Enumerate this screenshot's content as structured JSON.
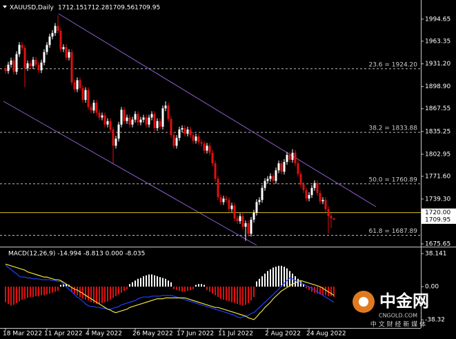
{
  "chart_data": {
    "type": "candlestick",
    "symbol": "XAUUSD,Daily",
    "header_values": [
      1712.15,
      1712.28,
      1709.56,
      1709.95
    ],
    "up_color": "#ffffff",
    "down_color": "#e01010",
    "ylim": [
      1671.7,
      2017.9
    ],
    "yticks": [
      1994.65,
      1963.35,
      {
        "value": 1931.2,
        "label": "1931.20"
      },
      {
        "value": 1898.9,
        "label": "1898.90"
      },
      1867.55,
      1835.25,
      1802.95,
      {
        "value": 1771.6,
        "label": "1771.60"
      },
      {
        "value": 1739.3,
        "label": "1739.30"
      },
      1675.65
    ],
    "xticks": [
      {
        "value": 0,
        "label": "18 Mar 2022"
      },
      {
        "value": 15,
        "label": "11 Apr 2022"
      },
      {
        "value": 30,
        "label": "4 May 2022"
      },
      {
        "value": 47,
        "label": "26 May 2022"
      },
      {
        "value": 63,
        "label": "17 Jun 2022"
      },
      {
        "value": 78,
        "label": "11 Jul 2022"
      },
      {
        "value": 95,
        "label": "2 Aug 2022"
      },
      {
        "value": 110,
        "label": "24 Aug 2022"
      }
    ],
    "levels": [
      {
        "label": "23.6 = 1924.20",
        "value": 1924.2
      },
      {
        "label": "38.2 = 1833.88",
        "value": 1833.88
      },
      {
        "label": "50.0 = 1760.89",
        "value": 1760.89
      },
      {
        "label": "61.8 = 1687.89",
        "value": 1687.89
      }
    ],
    "price_line": {
      "value": 1720,
      "label": "1720.00",
      "color": "#e0c020"
    },
    "last_price": 1709.95,
    "candles": [
      [
        1925,
        1929,
        1917,
        1921
      ],
      [
        1921,
        1934,
        1917,
        1930
      ],
      [
        1930,
        1940,
        1926,
        1936
      ],
      [
        1936,
        1940,
        1916,
        1920
      ],
      [
        1920,
        1949,
        1916,
        1945
      ],
      [
        1945,
        1962,
        1941,
        1958
      ],
      [
        1958,
        1962,
        1950,
        1954
      ],
      [
        1954,
        1958,
        1898,
        1925
      ],
      [
        1925,
        1936,
        1921,
        1932
      ],
      [
        1932,
        1936,
        1924,
        1928
      ],
      [
        1928,
        1941,
        1924,
        1937
      ],
      [
        1937,
        1941,
        1926,
        1930
      ],
      [
        1930,
        1934,
        1918,
        1922
      ],
      [
        1922,
        1937,
        1918,
        1933
      ],
      [
        1933,
        1952,
        1929,
        1948
      ],
      [
        1948,
        1962,
        1944,
        1958
      ],
      [
        1958,
        1974,
        1954,
        1970
      ],
      [
        1970,
        1979,
        1966,
        1975
      ],
      [
        1975,
        1989,
        1971,
        1985
      ],
      [
        1985,
        2000,
        1974,
        1978
      ],
      [
        1978,
        1982,
        1948,
        1952
      ],
      [
        1952,
        1959,
        1948,
        1955
      ],
      [
        1955,
        1959,
        1936,
        1940
      ],
      [
        1940,
        1952,
        1936,
        1948
      ],
      [
        1948,
        1952,
        1901,
        1905
      ],
      [
        1905,
        1909,
        1891,
        1895
      ],
      [
        1895,
        1912,
        1891,
        1908
      ],
      [
        1908,
        1912,
        1893,
        1897
      ],
      [
        1897,
        1901,
        1876,
        1880
      ],
      [
        1880,
        1898,
        1876,
        1894
      ],
      [
        1894,
        1898,
        1866,
        1870
      ],
      [
        1870,
        1874,
        1861,
        1865
      ],
      [
        1865,
        1880,
        1861,
        1876
      ],
      [
        1876,
        1880,
        1858,
        1862
      ],
      [
        1862,
        1866,
        1851,
        1855
      ],
      [
        1855,
        1862,
        1851,
        1858
      ],
      [
        1858,
        1862,
        1841,
        1845
      ],
      [
        1845,
        1854,
        1841,
        1850
      ],
      [
        1850,
        1854,
        1834,
        1838
      ],
      [
        1838,
        1842,
        1790,
        1815
      ],
      [
        1815,
        1829,
        1811,
        1825
      ],
      [
        1825,
        1849,
        1821,
        1845
      ],
      [
        1845,
        1870,
        1841,
        1866
      ],
      [
        1866,
        1870,
        1846,
        1850
      ],
      [
        1850,
        1859,
        1846,
        1855
      ],
      [
        1855,
        1859,
        1841,
        1845
      ],
      [
        1845,
        1856,
        1841,
        1852
      ],
      [
        1852,
        1864,
        1848,
        1860
      ],
      [
        1860,
        1864,
        1844,
        1848
      ],
      [
        1848,
        1856,
        1844,
        1852
      ],
      [
        1852,
        1859,
        1848,
        1855
      ],
      [
        1855,
        1859,
        1841,
        1845
      ],
      [
        1845,
        1859,
        1841,
        1855
      ],
      [
        1855,
        1864,
        1851,
        1860
      ],
      [
        1860,
        1864,
        1836,
        1840
      ],
      [
        1840,
        1854,
        1836,
        1850
      ],
      [
        1850,
        1854,
        1838,
        1842
      ],
      [
        1842,
        1872,
        1838,
        1868
      ],
      [
        1868,
        1878,
        1864,
        1872
      ],
      [
        1872,
        1876,
        1849,
        1853
      ],
      [
        1853,
        1857,
        1826,
        1830
      ],
      [
        1830,
        1834,
        1811,
        1815
      ],
      [
        1815,
        1830,
        1811,
        1826
      ],
      [
        1826,
        1842,
        1822,
        1838
      ],
      [
        1838,
        1844,
        1834,
        1840
      ],
      [
        1840,
        1844,
        1828,
        1832
      ],
      [
        1832,
        1842,
        1828,
        1838
      ],
      [
        1838,
        1842,
        1826,
        1830
      ],
      [
        1830,
        1834,
        1818,
        1822
      ],
      [
        1822,
        1832,
        1818,
        1828
      ],
      [
        1828,
        1832,
        1816,
        1820
      ],
      [
        1820,
        1824,
        1814,
        1818
      ],
      [
        1818,
        1822,
        1804,
        1808
      ],
      [
        1808,
        1819,
        1804,
        1815
      ],
      [
        1815,
        1819,
        1801,
        1805
      ],
      [
        1805,
        1809,
        1786,
        1790
      ],
      [
        1790,
        1794,
        1764,
        1768
      ],
      [
        1768,
        1772,
        1738,
        1742
      ],
      [
        1742,
        1746,
        1731,
        1735
      ],
      [
        1735,
        1744,
        1731,
        1740
      ],
      [
        1740,
        1744,
        1734,
        1738
      ],
      [
        1738,
        1742,
        1721,
        1725
      ],
      [
        1725,
        1734,
        1721,
        1730
      ],
      [
        1730,
        1734,
        1708,
        1712
      ],
      [
        1712,
        1716,
        1704,
        1708
      ],
      [
        1708,
        1719,
        1704,
        1715
      ],
      [
        1715,
        1719,
        1696,
        1700
      ],
      [
        1700,
        1709,
        1680,
        1705
      ],
      [
        1705,
        1709,
        1686,
        1690
      ],
      [
        1690,
        1714,
        1686,
        1710
      ],
      [
        1710,
        1724,
        1706,
        1720
      ],
      [
        1720,
        1739,
        1716,
        1735
      ],
      [
        1735,
        1742,
        1731,
        1738
      ],
      [
        1738,
        1759,
        1734,
        1755
      ],
      [
        1755,
        1769,
        1751,
        1765
      ],
      [
        1765,
        1772,
        1761,
        1768
      ],
      [
        1768,
        1776,
        1764,
        1772
      ],
      [
        1772,
        1776,
        1761,
        1765
      ],
      [
        1765,
        1784,
        1761,
        1780
      ],
      [
        1780,
        1794,
        1776,
        1790
      ],
      [
        1790,
        1794,
        1774,
        1778
      ],
      [
        1778,
        1796,
        1774,
        1792
      ],
      [
        1792,
        1806,
        1788,
        1802
      ],
      [
        1802,
        1806,
        1791,
        1795
      ],
      [
        1795,
        1810,
        1791,
        1805
      ],
      [
        1805,
        1809,
        1786,
        1790
      ],
      [
        1790,
        1794,
        1771,
        1775
      ],
      [
        1775,
        1779,
        1756,
        1760
      ],
      [
        1760,
        1764,
        1748,
        1752
      ],
      [
        1752,
        1756,
        1736,
        1740
      ],
      [
        1740,
        1749,
        1736,
        1745
      ],
      [
        1745,
        1759,
        1741,
        1755
      ],
      [
        1755,
        1766,
        1751,
        1762
      ],
      [
        1762,
        1766,
        1744,
        1748
      ],
      [
        1748,
        1752,
        1732,
        1736
      ],
      [
        1736,
        1742,
        1732,
        1738
      ],
      [
        1738,
        1742,
        1721,
        1725
      ],
      [
        1725,
        1729,
        1690,
        1715
      ],
      [
        1715,
        1719,
        1698,
        1712
      ],
      [
        1712.15,
        1712.28,
        1709.56,
        1709.95
      ]
    ],
    "macd": {
      "label": "MACD(12,26,9) -14.994 -8.813 0.000 -8.035",
      "ylim": [
        -47.7,
        44.5
      ],
      "yticks": [
        38.141,
        {
          "value": 0,
          "label": "0.00"
        },
        -38.32
      ],
      "macd_color": "#2040ff",
      "signal_color": "#f0e040",
      "up_color": "#ffffff",
      "down_color": "#e01010",
      "histogram": [
        -18,
        -20,
        -22,
        -21,
        -19,
        -17,
        -15,
        -14,
        -13,
        -12,
        -12,
        -11,
        -11,
        -10,
        -10,
        -9,
        -8,
        -7,
        -6,
        -5,
        2,
        3,
        3,
        2,
        -6,
        -8,
        -10,
        -12,
        -14,
        -15,
        -16,
        -18,
        -19,
        -20,
        -20,
        -19,
        -18,
        -17,
        -15,
        -13,
        -11,
        -9,
        -7,
        -5,
        -3,
        3,
        5,
        7,
        9,
        10,
        12,
        13,
        14,
        14,
        13,
        12,
        11,
        10,
        9,
        7,
        5,
        -3,
        -4,
        -5,
        -6,
        -6,
        -5,
        -4,
        -3,
        2,
        3,
        3,
        2,
        -4,
        -6,
        -8,
        -10,
        -12,
        -14,
        -15,
        -16,
        -17,
        -18,
        -19,
        -20,
        -21,
        -22,
        -21,
        -19,
        -16,
        -12,
        6,
        9,
        12,
        15,
        18,
        20,
        22,
        23,
        24,
        24,
        23,
        21,
        18,
        15,
        12,
        9,
        6,
        3,
        -2,
        -4,
        -6,
        -7,
        -8,
        -9,
        -10,
        -10,
        -11,
        -11,
        -12
      ],
      "macd_line": [
        25,
        22,
        20,
        17,
        15,
        12,
        11,
        11,
        10,
        10,
        9,
        9,
        9,
        8,
        8,
        8,
        8,
        7,
        7,
        6,
        6,
        3,
        0,
        -3,
        -6,
        -9,
        -12,
        -14,
        -17,
        -20,
        -22,
        -23,
        -23,
        -24,
        -24,
        -25,
        -25,
        -26,
        -26,
        -25,
        -24,
        -23,
        -21,
        -20,
        -19,
        -18,
        -17,
        -16,
        -14,
        -13,
        -12,
        -12,
        -12,
        -11,
        -11,
        -11,
        -11,
        -10,
        -10,
        -10,
        -10,
        -11,
        -12,
        -13,
        -14,
        -15,
        -16,
        -17,
        -18,
        -19,
        -20,
        -21,
        -22,
        -23,
        -24,
        -25,
        -26,
        -27,
        -28,
        -29,
        -30,
        -31,
        -32,
        -33,
        -35,
        -36,
        -35,
        -34,
        -33,
        -31,
        -30,
        -27,
        -24,
        -21,
        -18,
        -15,
        -12,
        -9,
        -6,
        -3,
        1,
        4,
        7,
        10,
        9,
        7,
        6,
        4,
        3,
        1,
        0,
        -2,
        -4,
        -6,
        -8,
        -10,
        -12,
        -14,
        -16,
        -18
      ],
      "signal_line": [
        26,
        25,
        24,
        23,
        22,
        21,
        20,
        19,
        17,
        16,
        15,
        14,
        13,
        12,
        11,
        11,
        10,
        9,
        8,
        8,
        7,
        5,
        3,
        1,
        -1,
        -3,
        -4,
        -6,
        -8,
        -10,
        -12,
        -14,
        -16,
        -18,
        -20,
        -22,
        -24,
        -26,
        -27,
        -29,
        -30,
        -29,
        -28,
        -27,
        -26,
        -24,
        -23,
        -22,
        -21,
        -20,
        -19,
        -18,
        -17,
        -16,
        -15,
        -14,
        -14,
        -14,
        -13,
        -13,
        -13,
        -13,
        -13,
        -13,
        -13,
        -13,
        -14,
        -15,
        -16,
        -17,
        -18,
        -19,
        -20,
        -21,
        -22,
        -23,
        -24,
        -24,
        -25,
        -26,
        -27,
        -28,
        -29,
        -30,
        -31,
        -32,
        -33,
        -34,
        -36,
        -37,
        -38,
        -35,
        -31,
        -28,
        -24,
        -21,
        -18,
        -14,
        -11,
        -8,
        -5,
        -3,
        -1,
        1,
        3,
        4,
        6,
        7,
        6,
        5,
        4,
        3,
        2,
        1,
        0,
        -2,
        -4,
        -6,
        -8,
        -10
      ]
    }
  },
  "watermark": {
    "name": "中金网",
    "site": "CNGOLD.COM",
    "tagline": "中 文 财 经 新 媒 体"
  }
}
